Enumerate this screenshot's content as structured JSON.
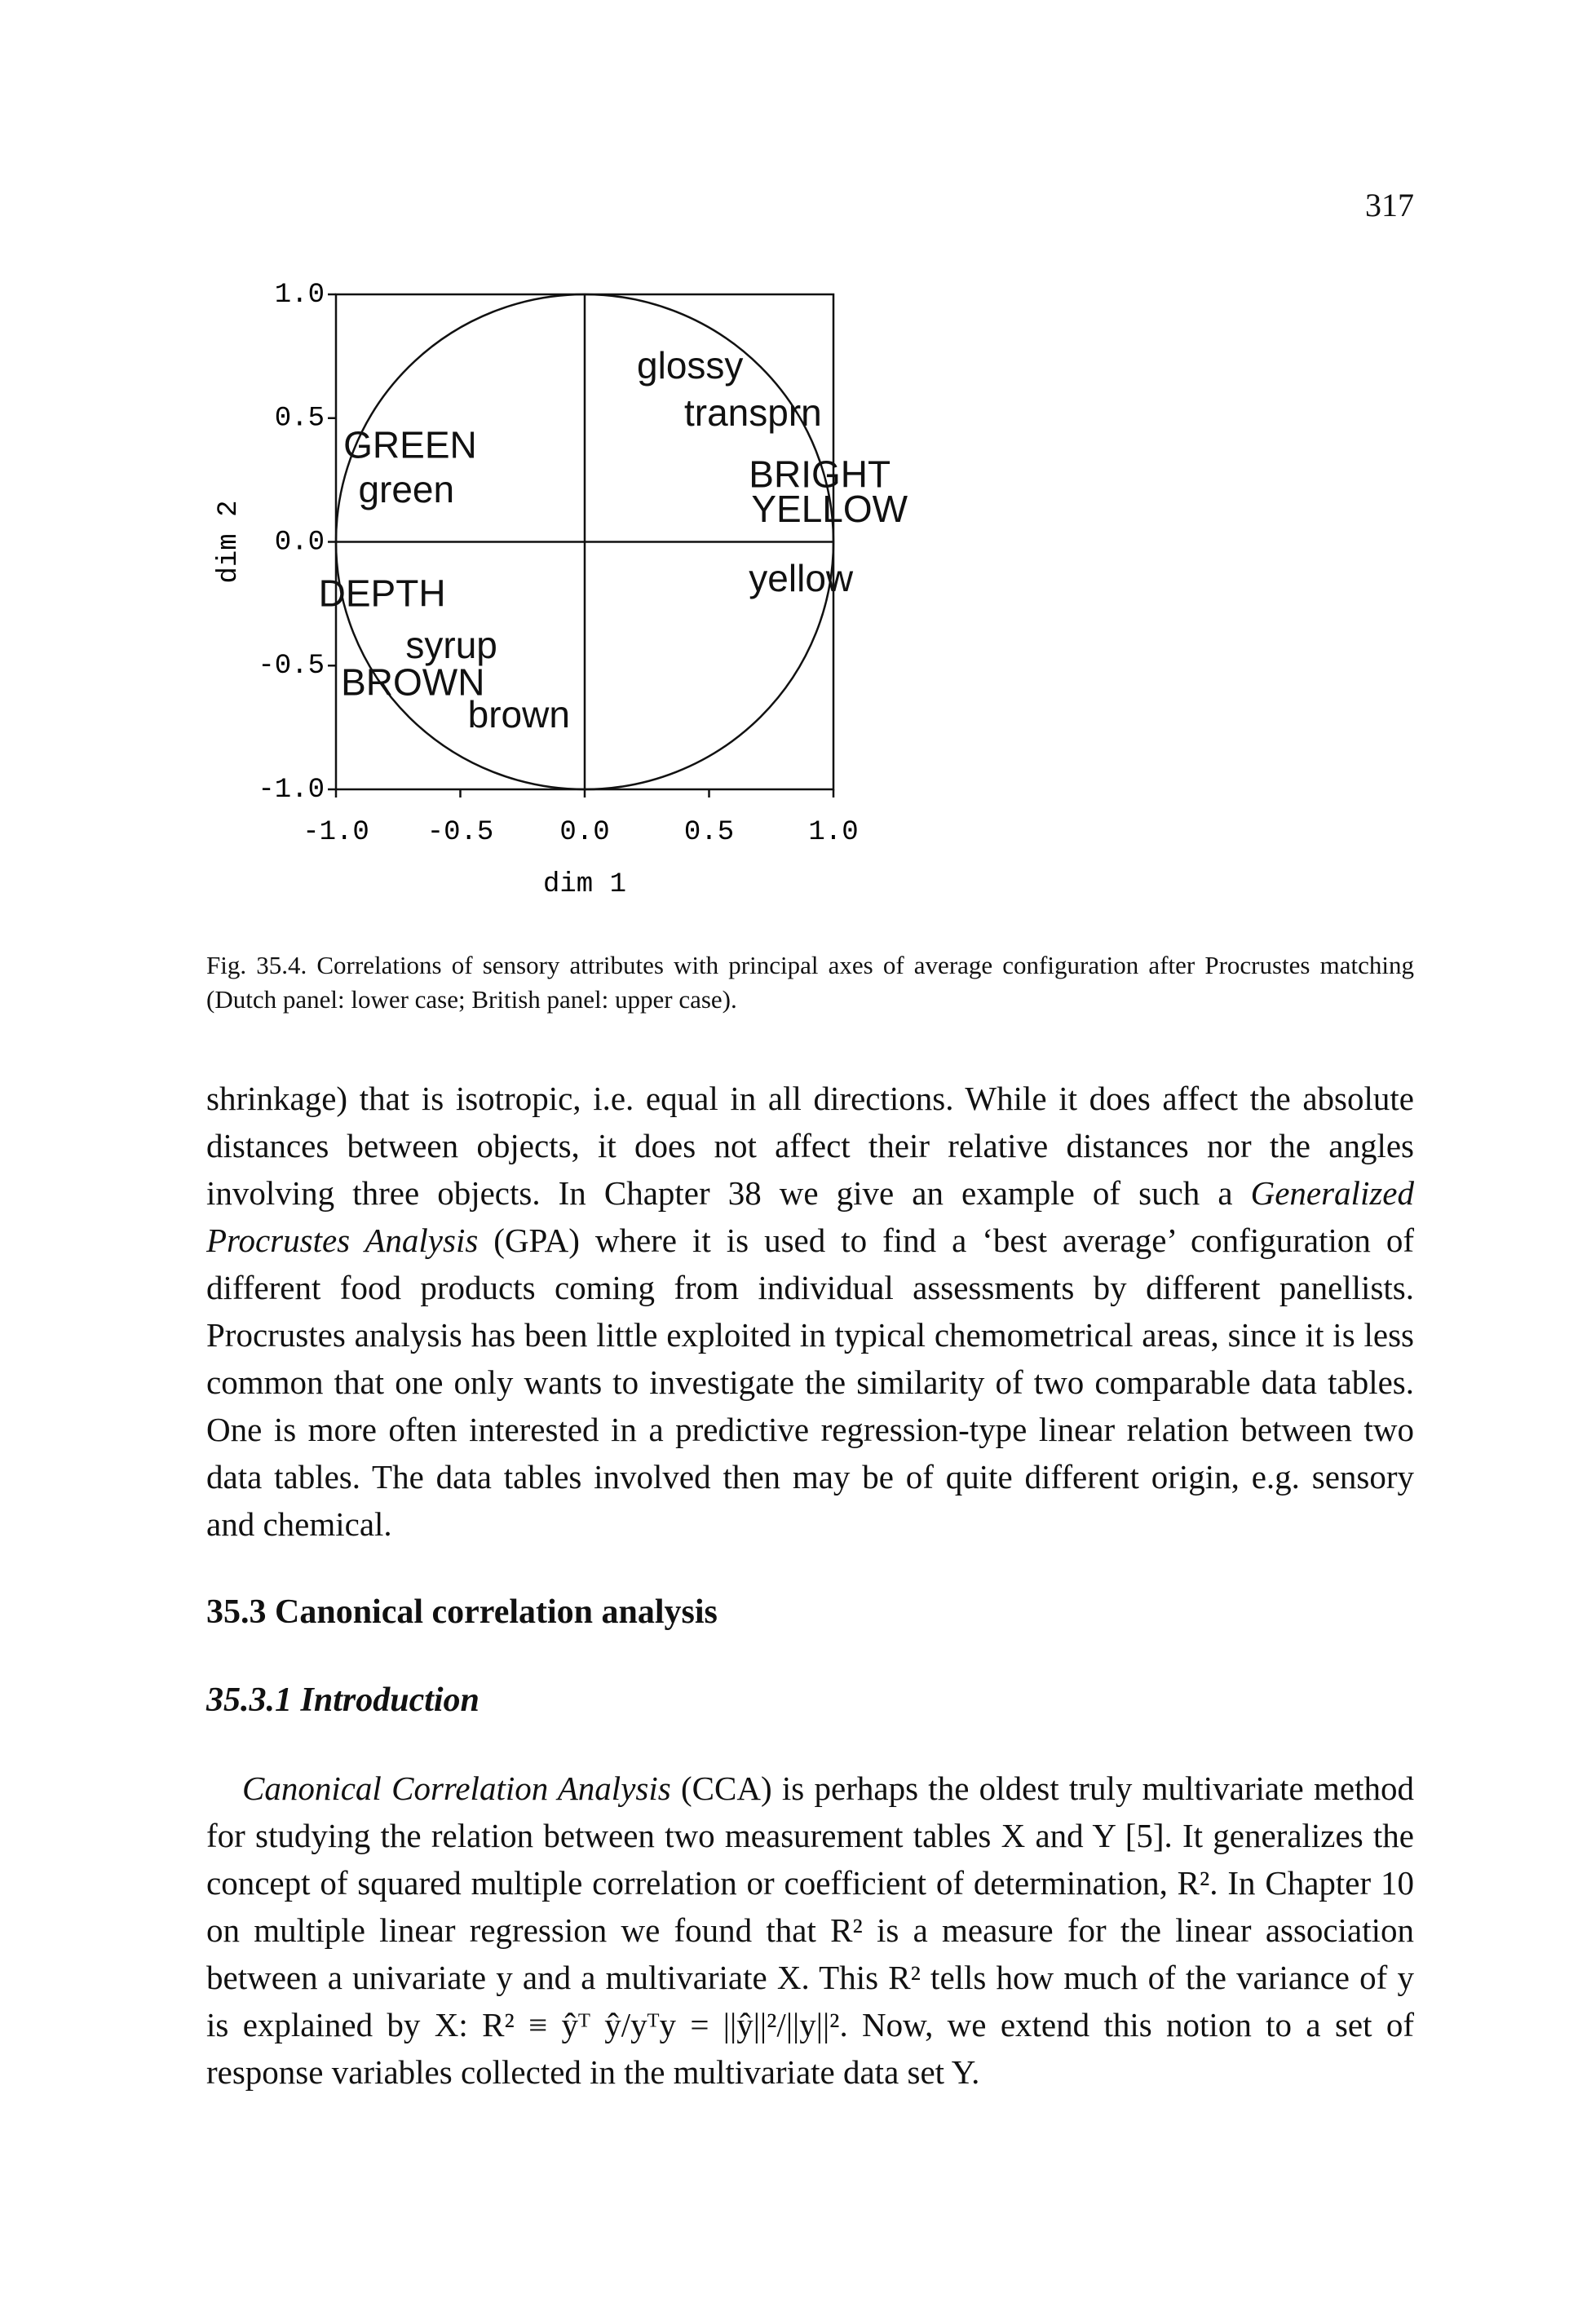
{
  "page_number": "317",
  "figure": {
    "chart_data": {
      "type": "scatter",
      "xlabel": "dim 1",
      "ylabel": "dim 2",
      "xlim": [
        -1,
        1
      ],
      "ylim": [
        -1,
        1
      ],
      "xticks": [
        {
          "value": -1,
          "label": "-1.0"
        },
        {
          "value": -0.5,
          "label": "-0.5"
        },
        {
          "value": 0,
          "label": "0.0"
        },
        {
          "value": 0.5,
          "label": "0.5"
        },
        {
          "value": 1,
          "label": "1.0"
        }
      ],
      "yticks": [
        {
          "value": -1,
          "label": "-1.0"
        },
        {
          "value": -0.5,
          "label": "-0.5"
        },
        {
          "value": 0,
          "label": "0.0"
        },
        {
          "value": 0.5,
          "label": "0.5"
        },
        {
          "value": 1,
          "label": "1.0"
        }
      ],
      "color": "#111111",
      "labels": [
        "GREEN",
        "green",
        "DEPTH",
        "syrup",
        "BROWN",
        "brown",
        "glossy",
        "transprn",
        "BRIGHT",
        "YELLOW",
        "yellow"
      ],
      "x": [
        -0.97,
        -0.91,
        -1.07,
        -0.72,
        -0.98,
        -0.47,
        0.21,
        0.4,
        0.66,
        0.67,
        0.66
      ],
      "values": [
        0.38,
        0.2,
        -0.22,
        -0.43,
        -0.58,
        -0.71,
        0.7,
        0.51,
        0.26,
        0.12,
        -0.16
      ]
    },
    "caption": "Fig. 35.4. Correlations of sensory attributes with principal axes of average configuration after Procrustes matching (Dutch panel: lower case; British panel: upper case)."
  },
  "body": [
    {
      "kind": "paragraph",
      "runs": [
        {
          "text": "shrinkage) that is isotropic, i.e. equal in all directions. While it does affect the absolute distances between objects, it does not affect their relative distances nor the angles involving three objects. In Chapter 38 we give an example of such a "
        },
        {
          "text": "Generalized Procrustes Analysis",
          "italic": true
        },
        {
          "text": " (GPA) where it is used to find a ‘best average’ configuration of different food products coming from individual assessments by different panellists. Procrustes analysis has been little exploited in typical chemometrical areas, since it is less common that one only wants to investigate the similarity of two comparable data tables. One is more often interested in a predictive regression-type linear relation between two data tables. The data tables involved then may be of quite different origin, e.g. sensory and chemical."
        }
      ]
    },
    {
      "kind": "heading",
      "runs": [
        {
          "text": "35.3 Canonical correlation analysis"
        }
      ]
    },
    {
      "kind": "subheading",
      "runs": [
        {
          "text": "35.3.1 Introduction",
          "italic": true
        }
      ]
    },
    {
      "kind": "paragraph-indent",
      "runs": [
        {
          "text": "Canonical Correlation Analysis",
          "italic": true
        },
        {
          "text": " (CCA) is perhaps the oldest truly multivariate method for studying the relation between two measurement tables X and Y [5]. It generalizes the concept of squared multiple correlation or coefficient of determination, R². In Chapter 10 on multiple linear regression we found that R² is a measure for the linear association between a univariate y and a multivariate X. This R² tells how much of the variance of y is explained by X: R² ≡ ŷᵀ ŷ/yᵀy = ||ŷ||²/||y||². Now, we extend this notion to a set of response variables collected in the multivariate data set Y."
        }
      ]
    }
  ]
}
